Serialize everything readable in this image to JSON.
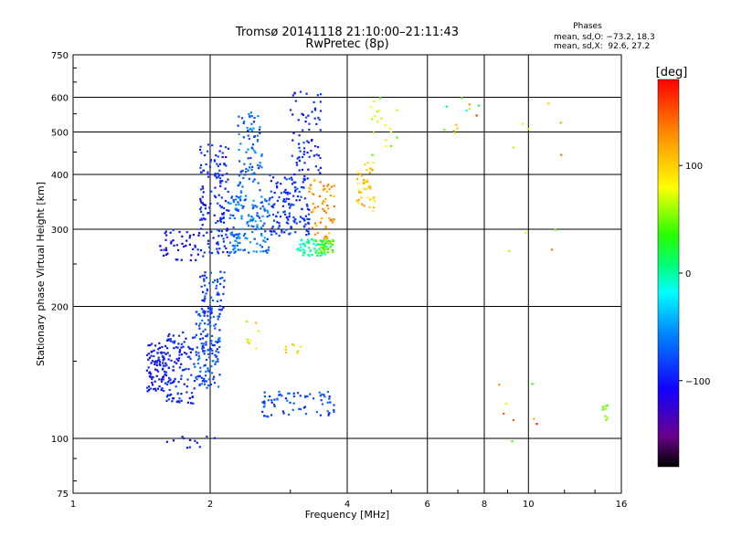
{
  "chart_data": {
    "type": "scatter",
    "title": "Tromsø 20141118 21:10:00–21:11:43",
    "subtitle": "RwPretec (8p)",
    "xlabel": "Frequency [MHz]",
    "ylabel": "Stationary phase Virtual Height [km]",
    "xscale": "log",
    "yscale": "log",
    "xlim": [
      1,
      16
    ],
    "ylim": [
      75,
      750
    ],
    "xticks": [
      "1",
      "2",
      "4",
      "6",
      "8",
      "10",
      "16"
    ],
    "yticks": [
      "75",
      "100",
      "200",
      "300",
      "400",
      "500",
      "600",
      "750"
    ],
    "grid": true,
    "phase_stats": {
      "title": "Phases",
      "line_o": "mean, sd,O: −73.2, 18.3",
      "line_x": "mean, sd,X:  92.6, 27.2"
    },
    "colorbar": {
      "label": "[deg]",
      "ticks": [
        "100",
        "0",
        "−100"
      ],
      "range": [
        -180,
        180
      ]
    },
    "clusters": [
      {
        "f": [
          1.45,
          1.6
        ],
        "h": [
          128,
          165
        ],
        "phase": [
          -115,
          -90
        ],
        "n": 90
      },
      {
        "f": [
          1.6,
          1.85
        ],
        "h": [
          120,
          175
        ],
        "phase": [
          -110,
          -80
        ],
        "n": 110
      },
      {
        "f": [
          1.85,
          2.1
        ],
        "h": [
          130,
          195
        ],
        "phase": [
          -100,
          -60
        ],
        "n": 130
      },
      {
        "f": [
          1.9,
          2.15
        ],
        "h": [
          190,
          240
        ],
        "phase": [
          -105,
          -70
        ],
        "n": 60
      },
      {
        "f": [
          1.55,
          1.9
        ],
        "h": [
          255,
          300
        ],
        "phase": [
          -115,
          -95
        ],
        "n": 45
      },
      {
        "f": [
          1.9,
          2.2
        ],
        "h": [
          260,
          470
        ],
        "phase": [
          -110,
          -80
        ],
        "n": 150
      },
      {
        "f": [
          2.2,
          2.7
        ],
        "h": [
          265,
          360
        ],
        "phase": [
          -90,
          -40
        ],
        "n": 150
      },
      {
        "f": [
          2.3,
          2.6
        ],
        "h": [
          360,
          560
        ],
        "phase": [
          -95,
          -50
        ],
        "n": 80
      },
      {
        "f": [
          2.7,
          3.3
        ],
        "h": [
          290,
          400
        ],
        "phase": [
          -105,
          -75
        ],
        "n": 140
      },
      {
        "f": [
          3.0,
          3.5
        ],
        "h": [
          400,
          620
        ],
        "phase": [
          -110,
          -80
        ],
        "n": 70
      },
      {
        "f": [
          3.1,
          3.6
        ],
        "h": [
          260,
          285
        ],
        "phase": [
          -20,
          10
        ],
        "n": 50
      },
      {
        "f": [
          3.4,
          3.75
        ],
        "h": [
          265,
          285
        ],
        "phase": [
          20,
          60
        ],
        "n": 45
      },
      {
        "f": [
          3.3,
          3.75
        ],
        "h": [
          285,
          390
        ],
        "phase": [
          100,
          150
        ],
        "n": 60
      },
      {
        "f": [
          2.6,
          3.75
        ],
        "h": [
          112,
          128
        ],
        "phase": [
          -100,
          -60
        ],
        "n": 70
      },
      {
        "f": [
          4.2,
          4.6
        ],
        "h": [
          330,
          430
        ],
        "phase": [
          80,
          130
        ],
        "n": 45
      },
      {
        "f": [
          4.5,
          5.2
        ],
        "h": [
          440,
          600
        ],
        "phase": [
          40,
          90
        ],
        "n": 20
      },
      {
        "f": [
          1.6,
          2.05
        ],
        "h": [
          95,
          102
        ],
        "phase": [
          -110,
          -90
        ],
        "n": 12
      },
      {
        "f": [
          2.4,
          2.6
        ],
        "h": [
          160,
          185
        ],
        "phase": [
          60,
          110
        ],
        "n": 8
      },
      {
        "f": [
          2.9,
          3.2
        ],
        "h": [
          155,
          165
        ],
        "phase": [
          80,
          110
        ],
        "n": 8
      },
      {
        "f": [
          6.5,
          8.0
        ],
        "h": [
          480,
          600
        ],
        "phase": [
          -20,
          160
        ],
        "n": 12
      },
      {
        "f": [
          9.0,
          12.0
        ],
        "h": [
          260,
          640
        ],
        "phase": [
          30,
          160
        ],
        "n": 10
      },
      {
        "f": [
          8.5,
          11.0
        ],
        "h": [
          80,
          140
        ],
        "phase": [
          30,
          170
        ],
        "n": 8
      },
      {
        "f": [
          14.5,
          15.0
        ],
        "h": [
          110,
          120
        ],
        "phase": [
          40,
          60
        ],
        "n": 8
      }
    ]
  }
}
